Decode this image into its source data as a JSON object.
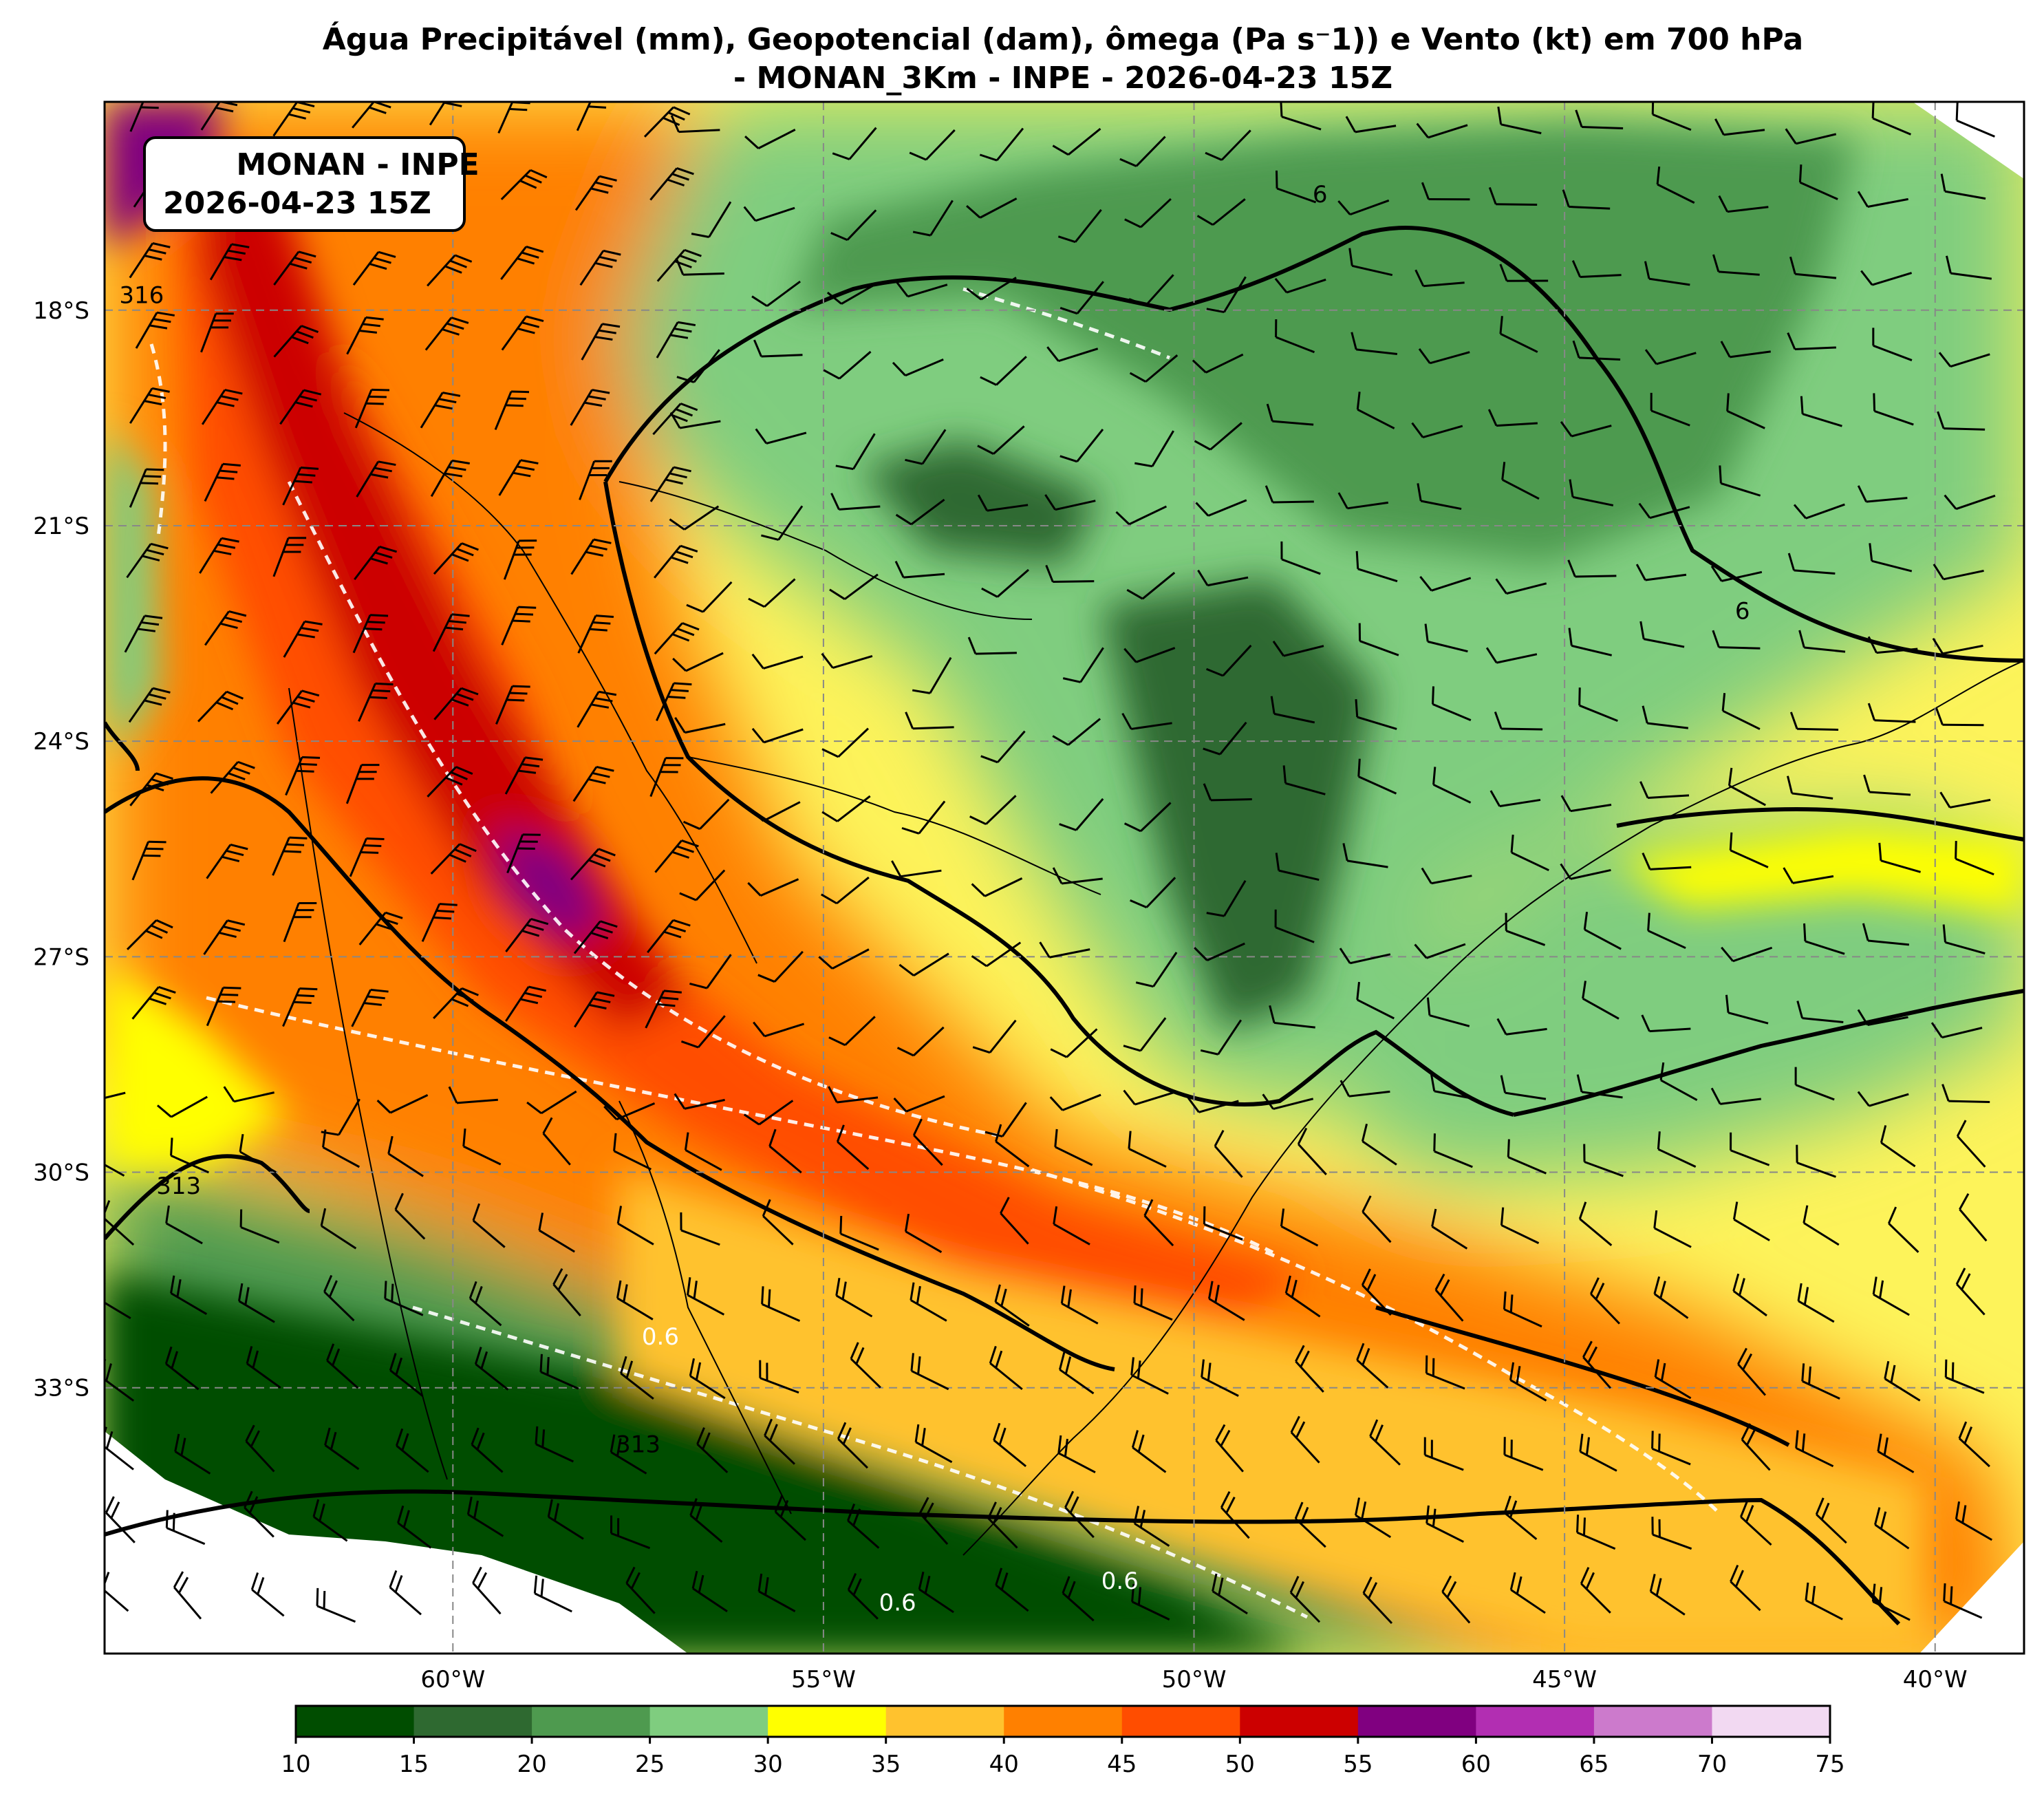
{
  "title": {
    "line1": "Água Precipitável (mm), Geopotencial (dam), ômega (Pa s⁻1)) e Vento (kt) em 700 hPa",
    "line2": "- MONAN_3Km - INPE - 2026-04-23 15Z"
  },
  "info_box": {
    "line1": "MONAN - INPE",
    "line2": "2026-04-23 15Z"
  },
  "map": {
    "lon_range": [
      -64.7,
      -38.8
    ],
    "lat_range": [
      -36.7,
      -15.1
    ],
    "lon_ticks": [
      {
        "value": -60,
        "label": "60°W"
      },
      {
        "value": -55,
        "label": "55°W"
      },
      {
        "value": -50,
        "label": "50°W"
      },
      {
        "value": -45,
        "label": "45°W"
      },
      {
        "value": -40,
        "label": "40°W"
      }
    ],
    "lat_ticks": [
      {
        "value": -18,
        "label": "18°S"
      },
      {
        "value": -21,
        "label": "21°S"
      },
      {
        "value": -24,
        "label": "24°S"
      },
      {
        "value": -27,
        "label": "27°S"
      },
      {
        "value": -30,
        "label": "30°S"
      },
      {
        "value": -33,
        "label": "33°S"
      }
    ],
    "gridlines": true,
    "contour_labels": [
      {
        "text": "316",
        "lon": -64.2,
        "lat": -17.9
      },
      {
        "text": "313",
        "lon": -63.7,
        "lat": -30.3
      },
      {
        "text": "313",
        "lon": -57.5,
        "lat": -33.9
      },
      {
        "text": "0.6",
        "lon": -57.2,
        "lat": -32.4
      },
      {
        "text": "0.6",
        "lon": -54.0,
        "lat": -36.1
      },
      {
        "text": "0.6",
        "lon": -51.0,
        "lat": -35.8
      },
      {
        "text": "6",
        "lon": -48.3,
        "lat": -16.5
      },
      {
        "text": "6",
        "lon": -42.6,
        "lat": -22.3
      }
    ]
  },
  "colorbar": {
    "ticks": [
      "10",
      "15",
      "20",
      "25",
      "30",
      "35",
      "40",
      "45",
      "50",
      "55",
      "60",
      "65",
      "70",
      "75"
    ],
    "colors": [
      "#004d00",
      "#2e6930",
      "#4e9a4f",
      "#7fcd7f",
      "#ffff00",
      "#ffc22e",
      "#ff8000",
      "#ff4d00",
      "#cc0000",
      "#800080",
      "#b22eb2",
      "#cc7acc",
      "#f2d9f2"
    ]
  },
  "legend_colors": {
    "land_outline": "#000000",
    "geopotential_contour": "#000000",
    "omega_contour": "#ffffff",
    "wind_barb": "#000000"
  }
}
